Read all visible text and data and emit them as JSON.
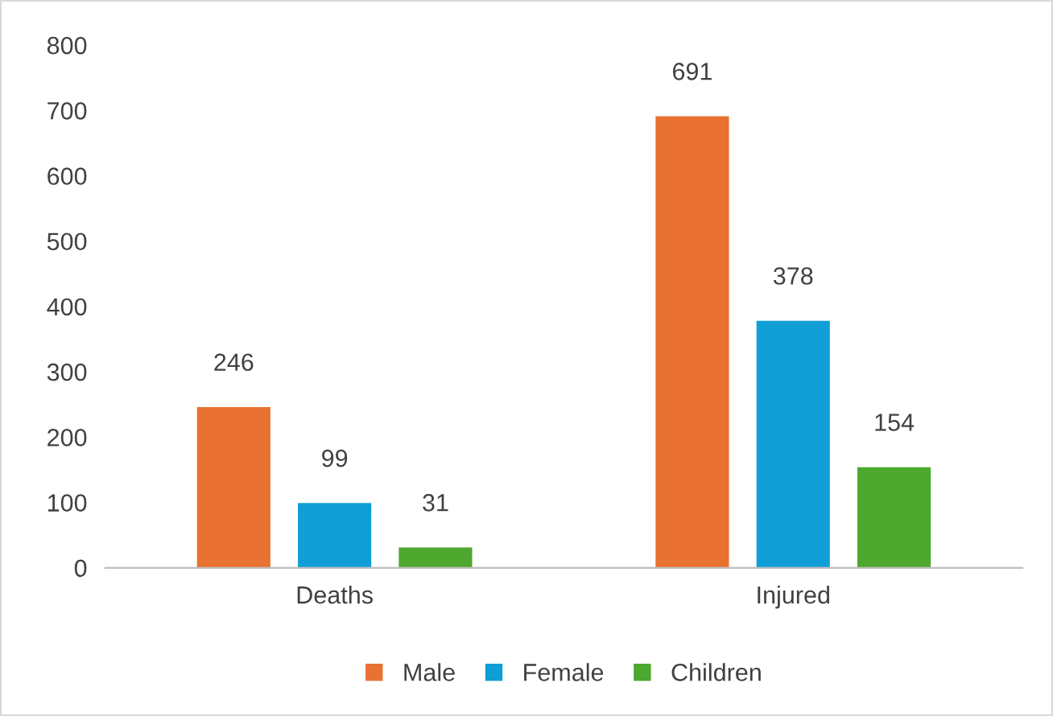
{
  "chart_data": {
    "type": "bar",
    "categories": [
      "Deaths",
      "Injured"
    ],
    "series": [
      {
        "name": "Male",
        "color": "#e97132",
        "values": [
          246,
          691
        ]
      },
      {
        "name": "Female",
        "color": "#0f9ed5",
        "values": [
          99,
          378
        ]
      },
      {
        "name": "Children",
        "color": "#4ea72e",
        "values": [
          31,
          154
        ]
      }
    ],
    "ylim": [
      0,
      800
    ],
    "yticks": [
      0,
      100,
      200,
      300,
      400,
      500,
      600,
      700,
      800
    ],
    "grid": false,
    "legend": "bottom",
    "data_labels": true
  }
}
